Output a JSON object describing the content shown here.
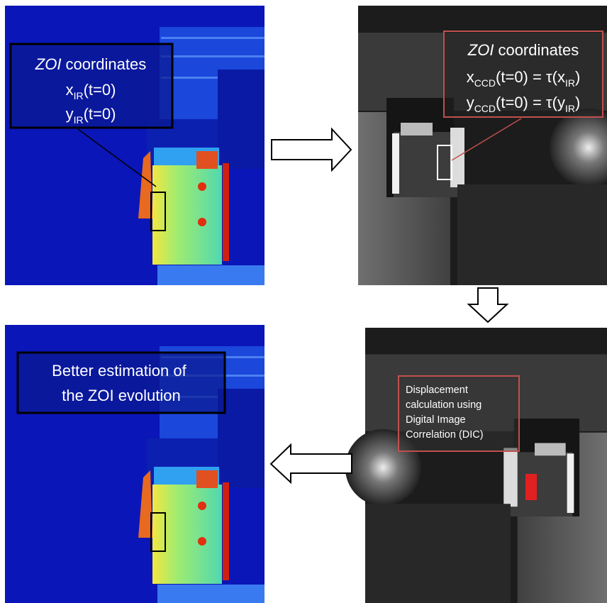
{
  "ir_box": {
    "title_em": "ZOI",
    "title": "coordinates",
    "lines": [
      {
        "var": "x",
        "sub": "IR",
        "arg": "(t=0)"
      },
      {
        "var": "y",
        "sub": "IR",
        "arg": "(t=0)"
      }
    ]
  },
  "ccd_box": {
    "title_em": "ZOI",
    "title": "coordinates",
    "lines": [
      {
        "var": "x",
        "sub": "CCD",
        "arg": "(t=0) = τ(x",
        "sub2": "IR",
        "end": ")"
      },
      {
        "var": "y",
        "sub": "CCD",
        "arg": "(t=0) = τ(y",
        "sub2": "IR",
        "end": ")"
      }
    ]
  },
  "dic_box": {
    "lines": [
      "Displacement",
      "calculation using",
      "Digital Image",
      "Correlation (DIC)"
    ]
  },
  "result_box": {
    "lines": [
      "Better estimation of",
      "the ZOI evolution"
    ]
  }
}
